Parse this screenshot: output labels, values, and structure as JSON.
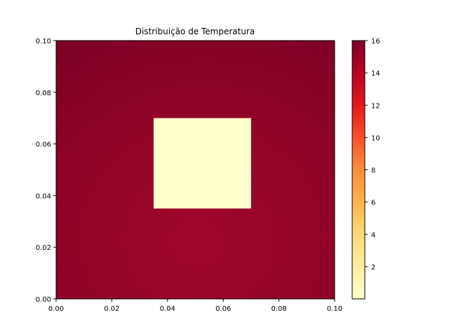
{
  "chart_data": {
    "type": "heatmap",
    "title": "Distribuição de Temperatura",
    "xlabel": "",
    "ylabel": "",
    "xlim": [
      0.0,
      0.1
    ],
    "ylim": [
      0.0,
      0.1
    ],
    "x_ticks": [
      "0.00",
      "0.02",
      "0.04",
      "0.06",
      "0.08",
      "0.10"
    ],
    "y_ticks": [
      "0.00",
      "0.02",
      "0.04",
      "0.06",
      "0.08",
      "0.10"
    ],
    "colormap": "YlOrRd",
    "colorbar": {
      "vmin": 0,
      "vmax": 16,
      "ticks": [
        "2",
        "4",
        "6",
        "8",
        "10",
        "12",
        "14",
        "16"
      ],
      "stops": [
        "#ffffcc",
        "#ffeda0",
        "#fed976",
        "#feb24c",
        "#fd8d3c",
        "#fc4e2a",
        "#e31a1c",
        "#bd0026",
        "#800026"
      ]
    },
    "grid": false,
    "field": {
      "background_value": 15,
      "center_value": 14.6,
      "right_edge_value": 15.9,
      "top_edge_value": 15.7,
      "cold_region": {
        "x_range": [
          0.035,
          0.07
        ],
        "y_range": [
          0.035,
          0.07
        ],
        "value": 0
      }
    }
  }
}
